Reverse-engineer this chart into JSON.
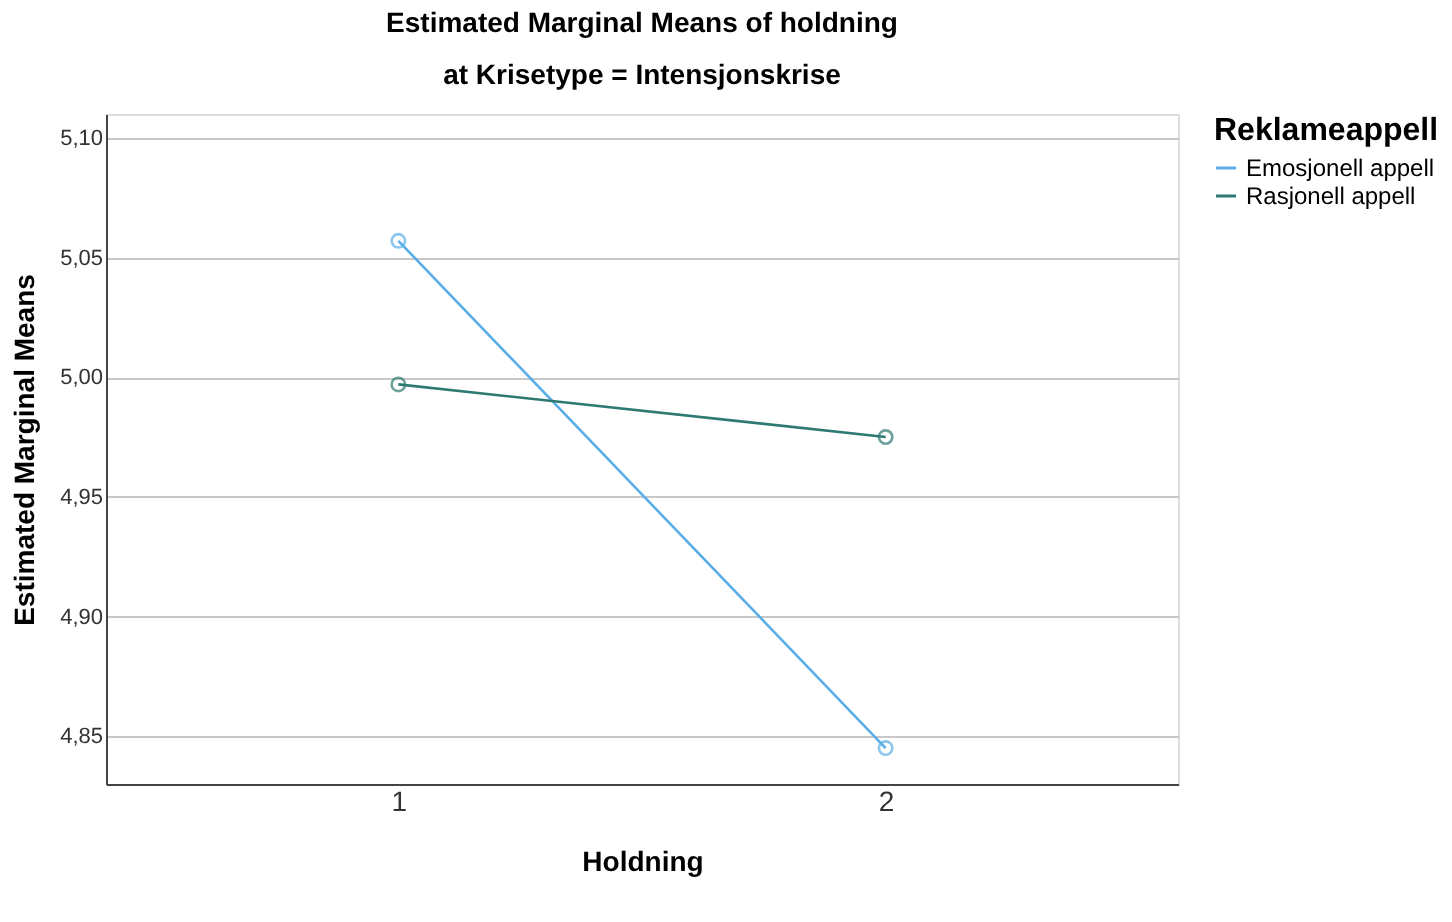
{
  "chart_data": {
    "type": "line",
    "title": "Estimated Marginal Means of holdning",
    "subtitle": "at Krisetype = Intensjonskrise",
    "xlabel": "Holdning",
    "ylabel": "Estimated Marginal Means",
    "legend_title": "Reklameappell",
    "categories": [
      "1",
      "2"
    ],
    "series": [
      {
        "name": "Emosjonell appell",
        "color": "#5aaee8",
        "values": [
          5.057,
          4.845
        ]
      },
      {
        "name": "Rasjonell appell",
        "color": "#2e7a72",
        "values": [
          4.997,
          4.975
        ]
      }
    ],
    "ylim": [
      4.83,
      5.11
    ],
    "yticks": [
      {
        "value": 4.85,
        "label": "4,85"
      },
      {
        "value": 4.9,
        "label": "4,90"
      },
      {
        "value": 4.95,
        "label": "4,95"
      },
      {
        "value": 5.0,
        "label": "5,00"
      },
      {
        "value": 5.05,
        "label": "5,05"
      },
      {
        "value": 5.1,
        "label": "5,10"
      }
    ],
    "grid": "y",
    "legend": "top right",
    "marker": "circle",
    "line_style": "solid"
  }
}
